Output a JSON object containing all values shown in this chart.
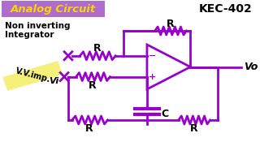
{
  "bg_color": "#ffffff",
  "title_bg": "#b06ccc",
  "title_text": "Analog Circuit",
  "title_color": "#f5d800",
  "kec_text": "KEC-402",
  "kec_color": "#000000",
  "subtitle1": "Non inverting",
  "subtitle2": "Integrator",
  "subtitle_color": "#000000",
  "vimp_text": "V.V.imp.",
  "vimp_bg": "#f5f07a",
  "vi_text": "Vi",
  "vo_text": "Vo",
  "circuit_color": "#9900cc",
  "label_color": "#000000"
}
